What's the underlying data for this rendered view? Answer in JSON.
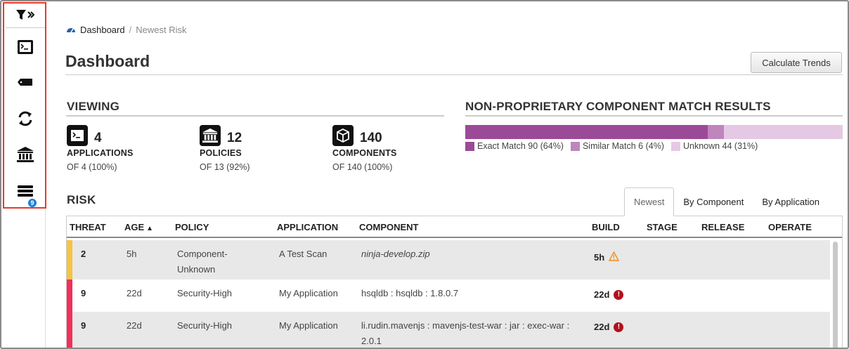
{
  "sidebar": {
    "items": [
      {
        "name": "filter-toggle",
        "icon": "filter-expand-icon"
      },
      {
        "name": "applications",
        "icon": "terminal-icon"
      },
      {
        "name": "components",
        "icon": "tag-icon"
      },
      {
        "name": "refresh",
        "icon": "sync-icon"
      },
      {
        "name": "policies",
        "icon": "institution-icon"
      },
      {
        "name": "waivers",
        "icon": "stack-list-icon",
        "badge": "9"
      }
    ]
  },
  "breadcrumb": {
    "home": "Dashboard",
    "separator": "/",
    "current": "Newest Risk"
  },
  "page": {
    "title": "Dashboard",
    "calculate_button": "Calculate Trends"
  },
  "viewing": {
    "heading": "VIEWING",
    "stats": [
      {
        "count": "4",
        "label": "APPLICATIONS",
        "sub": "OF 4 (100%)",
        "icon": "terminal-icon"
      },
      {
        "count": "12",
        "label": "POLICIES",
        "sub": "OF 13 (92%)",
        "icon": "institution-icon"
      },
      {
        "count": "140",
        "label": "COMPONENTS",
        "sub": "OF 140 (100%)",
        "icon": "cube-icon"
      }
    ]
  },
  "match": {
    "heading": "NON-PROPRIETARY COMPONENT MATCH RESULTS",
    "segments": [
      {
        "label": "Exact Match 90 (64%)",
        "value": 90,
        "color": "#9b4a98"
      },
      {
        "label": "Similar Match 6 (4%)",
        "value": 6,
        "color": "#bf85bd"
      },
      {
        "label": "Unknown 44 (31%)",
        "value": 44,
        "color": "#e5c8e4"
      }
    ]
  },
  "risk": {
    "heading": "RISK",
    "tabs": [
      "Newest",
      "By Component",
      "By Application"
    ],
    "active_tab": "Newest",
    "columns": [
      "THREAT",
      "AGE",
      "POLICY",
      "APPLICATION",
      "COMPONENT",
      "BUILD",
      "STAGE",
      "RELEASE",
      "OPERATE"
    ],
    "sort_indicator": "▲",
    "rows": [
      {
        "threat": "2",
        "threat_color": "#f6c343",
        "age": "5h",
        "policy": "Component-Unknown",
        "application": "A Test Scan",
        "component": "ninja-develop.zip",
        "component_italic": true,
        "build": "5h",
        "build_icon": "warning-triangle-icon"
      },
      {
        "threat": "9",
        "threat_color": "#f0305a",
        "age": "22d",
        "policy": "Security-High",
        "application": "My Application",
        "component": "hsqldb : hsqldb : 1.8.0.7",
        "component_italic": false,
        "build": "22d",
        "build_icon": "error-circle-icon"
      },
      {
        "threat": "9",
        "threat_color": "#f0305a",
        "age": "22d",
        "policy": "Security-High",
        "application": "My Application",
        "component": "li.rudin.mavenjs : mavenjs-test-war : jar : exec-war : 2.0.1",
        "component_italic": false,
        "build": "22d",
        "build_icon": "error-circle-icon"
      }
    ]
  }
}
